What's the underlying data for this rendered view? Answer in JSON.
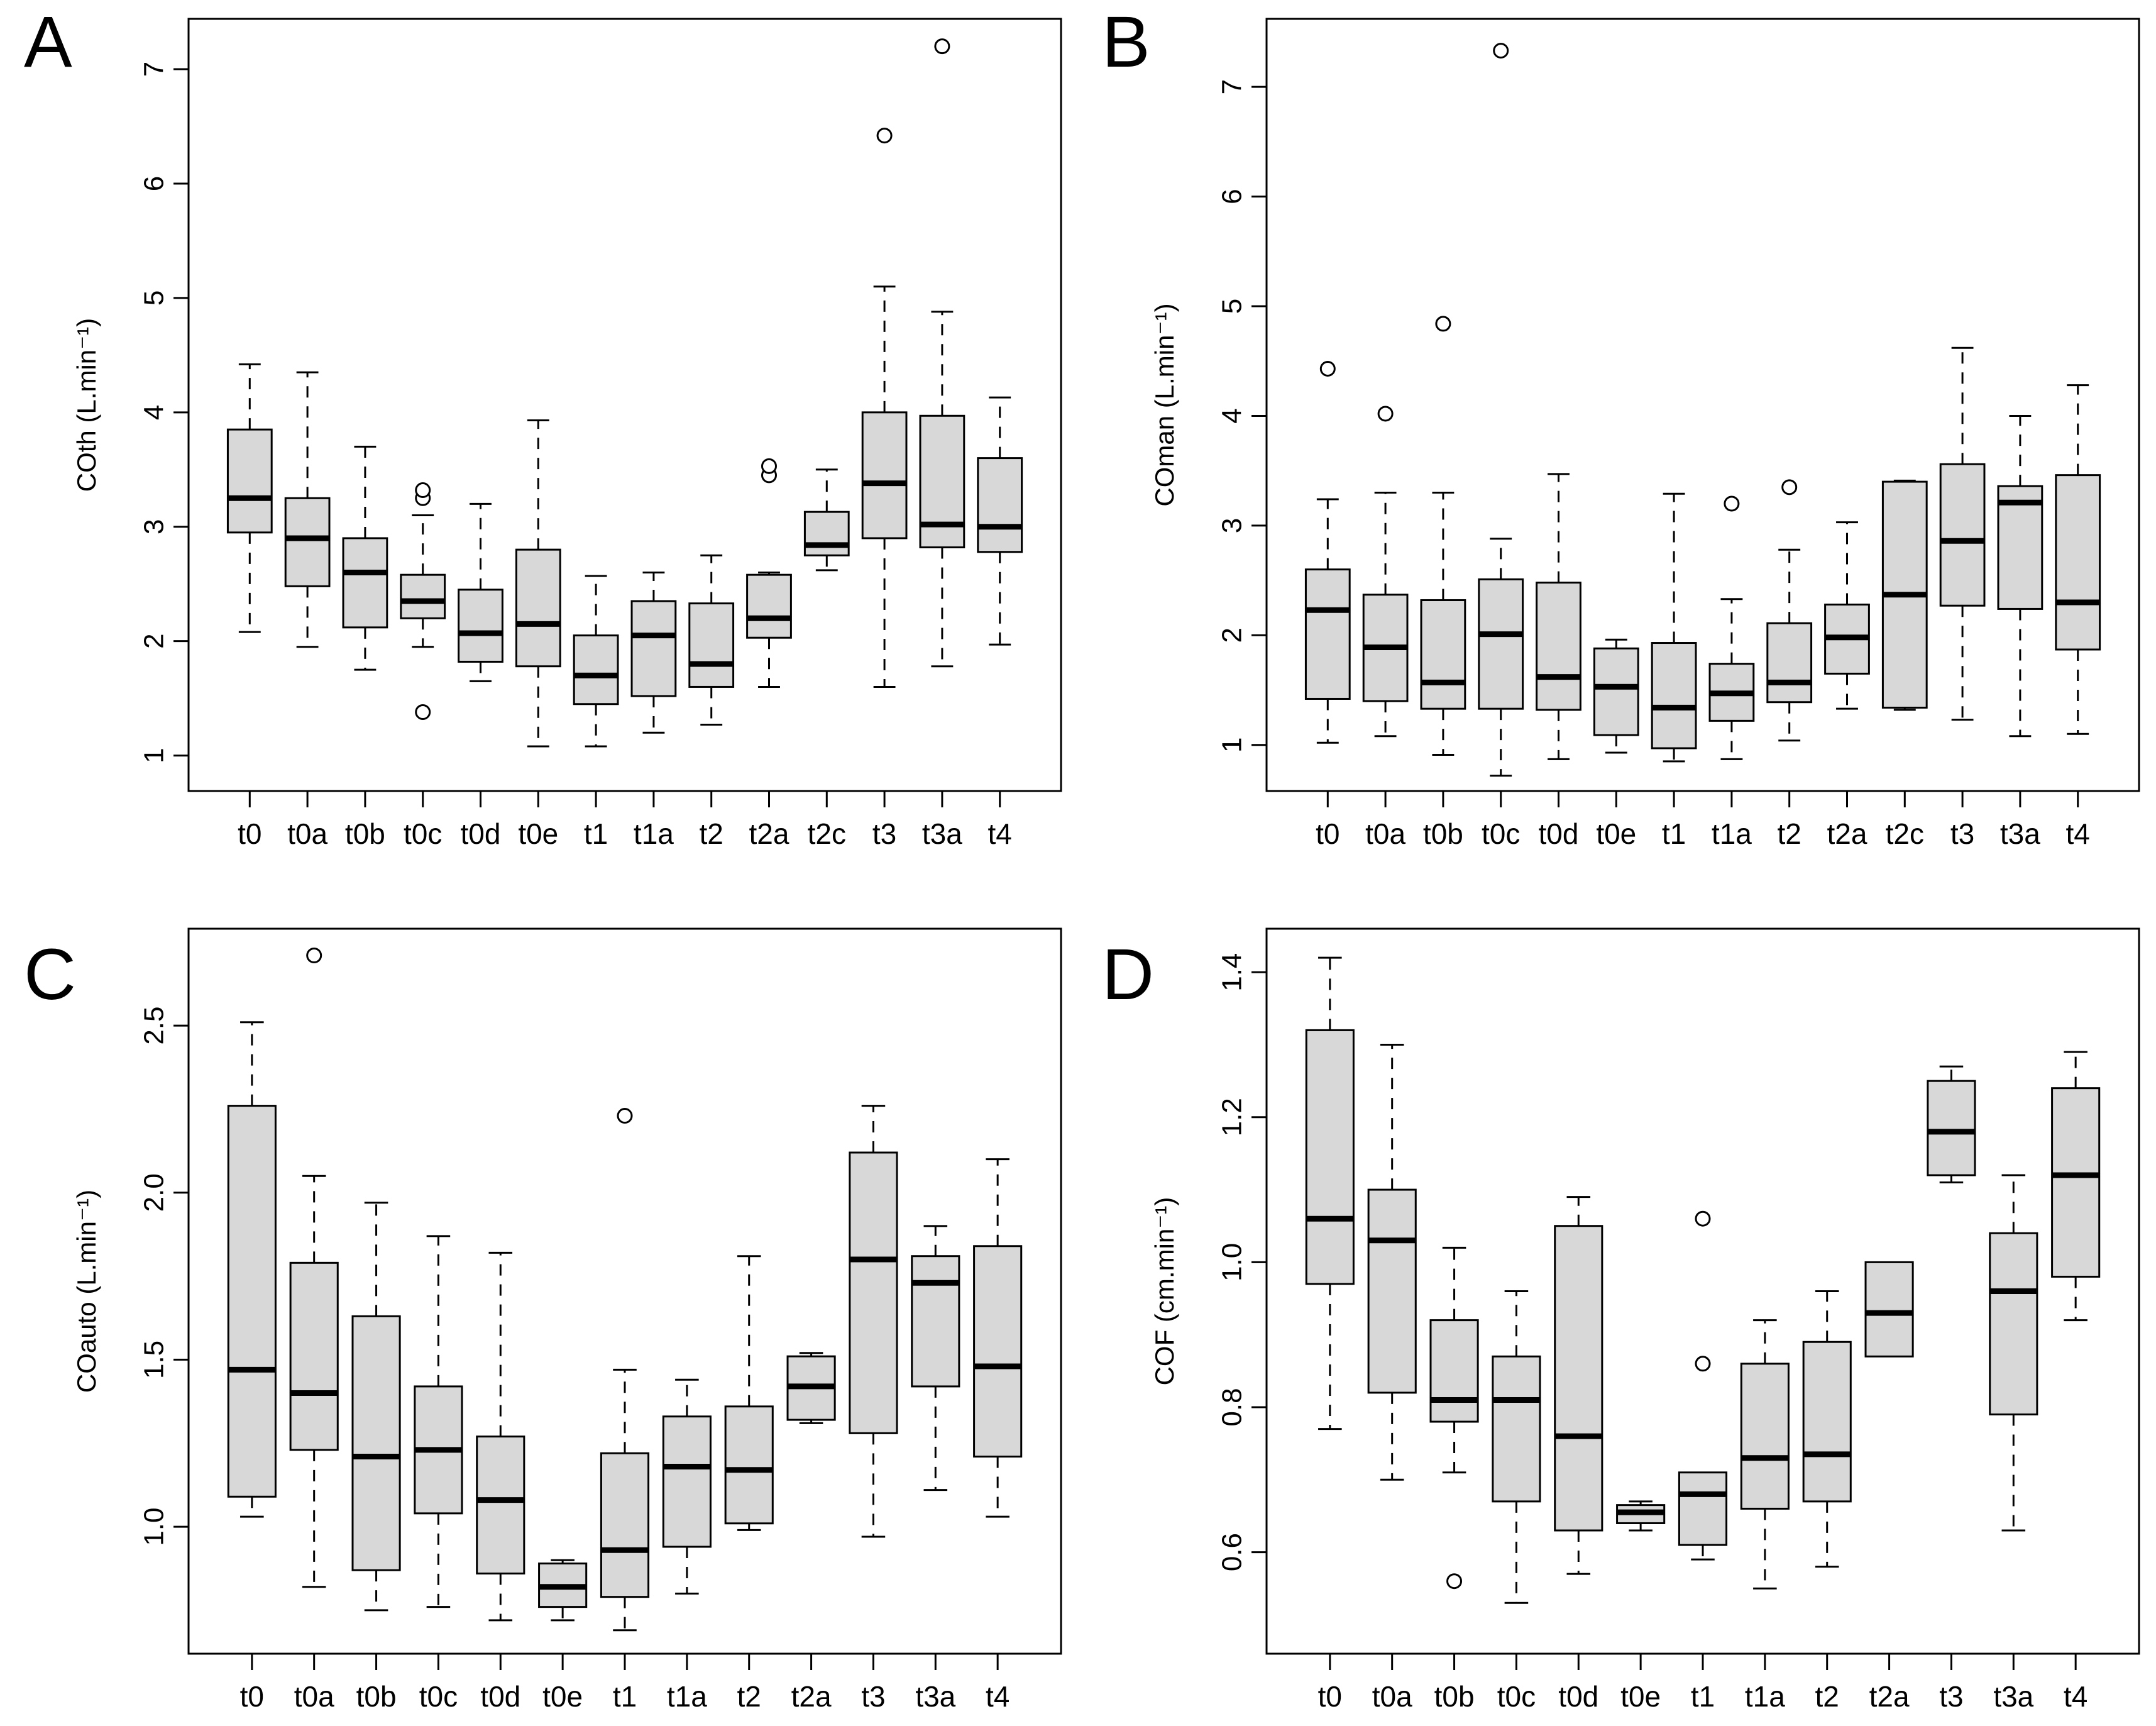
{
  "page": {
    "background": "#ffffff"
  },
  "style": {
    "box_fill": "#d8d8d8",
    "line_color": "#000000"
  },
  "chart_data": [
    {
      "type": "boxplot",
      "label": "A",
      "ylabel": "COth (L.min⁻¹)",
      "ylim": [
        0.69,
        7.44
      ],
      "yticks": [
        1,
        2,
        3,
        4,
        5,
        6,
        7
      ],
      "ytick_labels": [
        "1",
        "2",
        "3",
        "4",
        "5",
        "6",
        "7"
      ],
      "grid": false,
      "categories": [
        "t0",
        "t0a",
        "t0b",
        "t0c",
        "t0d",
        "t0e",
        "t1",
        "t1a",
        "t2",
        "t2a",
        "t2c",
        "t3",
        "t3a",
        "t4"
      ],
      "boxes": [
        {
          "lo": 2.08,
          "q1": 2.95,
          "med": 3.25,
          "q3": 3.85,
          "hi": 4.42,
          "out": []
        },
        {
          "lo": 1.95,
          "q1": 2.48,
          "med": 2.9,
          "q3": 3.25,
          "hi": 4.35,
          "out": []
        },
        {
          "lo": 1.75,
          "q1": 2.12,
          "med": 2.6,
          "q3": 2.9,
          "hi": 3.7,
          "out": []
        },
        {
          "lo": 1.95,
          "q1": 2.2,
          "med": 2.35,
          "q3": 2.58,
          "hi": 3.1,
          "out": [
            1.38,
            3.25,
            3.32
          ]
        },
        {
          "lo": 1.65,
          "q1": 1.82,
          "med": 2.07,
          "q3": 2.45,
          "hi": 3.2,
          "out": []
        },
        {
          "lo": 1.08,
          "q1": 1.78,
          "med": 2.15,
          "q3": 2.8,
          "hi": 3.93,
          "out": []
        },
        {
          "lo": 1.08,
          "q1": 1.45,
          "med": 1.7,
          "q3": 2.05,
          "hi": 2.57,
          "out": []
        },
        {
          "lo": 1.2,
          "q1": 1.52,
          "med": 2.05,
          "q3": 2.35,
          "hi": 2.6,
          "out": []
        },
        {
          "lo": 1.27,
          "q1": 1.6,
          "med": 1.8,
          "q3": 2.33,
          "hi": 2.75,
          "out": []
        },
        {
          "lo": 1.6,
          "q1": 2.03,
          "med": 2.2,
          "q3": 2.58,
          "hi": 2.6,
          "out": [
            3.45,
            3.53
          ]
        },
        {
          "lo": 2.62,
          "q1": 2.75,
          "med": 2.84,
          "q3": 3.13,
          "hi": 3.5,
          "out": []
        },
        {
          "lo": 1.6,
          "q1": 2.9,
          "med": 3.38,
          "q3": 4.0,
          "hi": 5.1,
          "out": [
            6.42
          ]
        },
        {
          "lo": 1.78,
          "q1": 2.82,
          "med": 3.02,
          "q3": 3.97,
          "hi": 4.88,
          "out": [
            7.2
          ]
        },
        {
          "lo": 1.97,
          "q1": 2.78,
          "med": 3.0,
          "q3": 3.6,
          "hi": 4.13,
          "out": []
        }
      ]
    },
    {
      "type": "boxplot",
      "label": "B",
      "ylabel": "COman (L.min⁻¹)",
      "ylim": [
        0.58,
        7.62
      ],
      "yticks": [
        1,
        2,
        3,
        4,
        5,
        6,
        7
      ],
      "ytick_labels": [
        "1",
        "2",
        "3",
        "4",
        "5",
        "6",
        "7"
      ],
      "grid": false,
      "categories": [
        "t0",
        "t0a",
        "t0b",
        "t0c",
        "t0d",
        "t0e",
        "t1",
        "t1a",
        "t2",
        "t2a",
        "t2c",
        "t3",
        "t3a",
        "t4"
      ],
      "boxes": [
        {
          "lo": 1.02,
          "q1": 1.42,
          "med": 2.23,
          "q3": 2.6,
          "hi": 3.24,
          "out": [
            4.43
          ]
        },
        {
          "lo": 1.08,
          "q1": 1.4,
          "med": 1.89,
          "q3": 2.37,
          "hi": 3.3,
          "out": [
            4.02
          ]
        },
        {
          "lo": 0.91,
          "q1": 1.33,
          "med": 1.57,
          "q3": 2.32,
          "hi": 3.3,
          "out": [
            4.84
          ]
        },
        {
          "lo": 0.72,
          "q1": 1.33,
          "med": 2.01,
          "q3": 2.51,
          "hi": 2.88,
          "out": [
            7.33
          ]
        },
        {
          "lo": 0.87,
          "q1": 1.32,
          "med": 1.62,
          "q3": 2.48,
          "hi": 3.47,
          "out": []
        },
        {
          "lo": 0.93,
          "q1": 1.09,
          "med": 1.53,
          "q3": 1.88,
          "hi": 1.96,
          "out": []
        },
        {
          "lo": 0.85,
          "q1": 0.97,
          "med": 1.34,
          "q3": 1.93,
          "hi": 3.29,
          "out": []
        },
        {
          "lo": 0.87,
          "q1": 1.22,
          "med": 1.47,
          "q3": 1.74,
          "hi": 2.33,
          "out": [
            3.2
          ]
        },
        {
          "lo": 1.04,
          "q1": 1.39,
          "med": 1.57,
          "q3": 2.11,
          "hi": 2.78,
          "out": [
            3.35
          ]
        },
        {
          "lo": 1.33,
          "q1": 1.65,
          "med": 1.98,
          "q3": 2.28,
          "hi": 3.03,
          "out": []
        },
        {
          "lo": 1.32,
          "q1": 1.34,
          "med": 2.37,
          "q3": 3.4,
          "hi": 3.41,
          "out": []
        },
        {
          "lo": 1.23,
          "q1": 2.27,
          "med": 2.86,
          "q3": 3.56,
          "hi": 4.62,
          "out": []
        },
        {
          "lo": 1.08,
          "q1": 2.24,
          "med": 3.21,
          "q3": 3.36,
          "hi": 4.0,
          "out": []
        },
        {
          "lo": 1.1,
          "q1": 1.87,
          "med": 2.3,
          "q3": 3.46,
          "hi": 4.28,
          "out": []
        }
      ]
    },
    {
      "type": "boxplot",
      "label": "C",
      "ylabel": "COauto (L.min⁻¹)",
      "ylim": [
        0.62,
        2.79
      ],
      "yticks": [
        1.0,
        1.5,
        2.0,
        2.5
      ],
      "ytick_labels": [
        "1.0",
        "1.5",
        "2.0",
        "2.5"
      ],
      "grid": false,
      "categories": [
        "t0",
        "t0a",
        "t0b",
        "t0c",
        "t0d",
        "t0e",
        "t1",
        "t1a",
        "t2",
        "t2a",
        "t3",
        "t3a",
        "t4"
      ],
      "boxes": [
        {
          "lo": 1.03,
          "q1": 1.09,
          "med": 1.47,
          "q3": 2.26,
          "hi": 2.51,
          "out": []
        },
        {
          "lo": 0.82,
          "q1": 1.23,
          "med": 1.4,
          "q3": 1.79,
          "hi": 2.05,
          "out": [
            2.71
          ]
        },
        {
          "lo": 0.75,
          "q1": 0.87,
          "med": 1.21,
          "q3": 1.63,
          "hi": 1.97,
          "out": []
        },
        {
          "lo": 0.76,
          "q1": 1.04,
          "med": 1.23,
          "q3": 1.42,
          "hi": 1.87,
          "out": []
        },
        {
          "lo": 0.72,
          "q1": 0.86,
          "med": 1.08,
          "q3": 1.27,
          "hi": 1.82,
          "out": []
        },
        {
          "lo": 0.72,
          "q1": 0.76,
          "med": 0.82,
          "q3": 0.89,
          "hi": 0.9,
          "out": []
        },
        {
          "lo": 0.69,
          "q1": 0.79,
          "med": 0.93,
          "q3": 1.22,
          "hi": 1.47,
          "out": [
            2.23
          ]
        },
        {
          "lo": 0.8,
          "q1": 0.94,
          "med": 1.18,
          "q3": 1.33,
          "hi": 1.44,
          "out": []
        },
        {
          "lo": 0.99,
          "q1": 1.01,
          "med": 1.17,
          "q3": 1.36,
          "hi": 1.81,
          "out": []
        },
        {
          "lo": 1.31,
          "q1": 1.32,
          "med": 1.42,
          "q3": 1.51,
          "hi": 1.52,
          "out": []
        },
        {
          "lo": 0.97,
          "q1": 1.28,
          "med": 1.8,
          "q3": 2.12,
          "hi": 2.26,
          "out": []
        },
        {
          "lo": 1.11,
          "q1": 1.42,
          "med": 1.73,
          "q3": 1.81,
          "hi": 1.9,
          "out": []
        },
        {
          "lo": 1.03,
          "q1": 1.21,
          "med": 1.48,
          "q3": 1.84,
          "hi": 2.1,
          "out": []
        }
      ]
    },
    {
      "type": "boxplot",
      "label": "D",
      "ylabel": "COF (cm.min⁻¹)",
      "ylim": [
        0.46,
        1.46
      ],
      "yticks": [
        0.6,
        0.8,
        1.0,
        1.2,
        1.4
      ],
      "ytick_labels": [
        "0.6",
        "0.8",
        "1.0",
        "1.2",
        "1.4"
      ],
      "grid": false,
      "categories": [
        "t0",
        "t0a",
        "t0b",
        "t0c",
        "t0d",
        "t0e",
        "t1",
        "t1a",
        "t2",
        "t2a",
        "t3",
        "t3a",
        "t4"
      ],
      "boxes": [
        {
          "lo": 0.77,
          "q1": 0.97,
          "med": 1.06,
          "q3": 1.32,
          "hi": 1.42,
          "out": []
        },
        {
          "lo": 0.7,
          "q1": 0.82,
          "med": 1.03,
          "q3": 1.1,
          "hi": 1.3,
          "out": []
        },
        {
          "lo": 0.71,
          "q1": 0.78,
          "med": 0.81,
          "q3": 0.92,
          "hi": 1.02,
          "out": [
            0.56
          ]
        },
        {
          "lo": 0.53,
          "q1": 0.67,
          "med": 0.81,
          "q3": 0.87,
          "hi": 0.96,
          "out": []
        },
        {
          "lo": 0.57,
          "q1": 0.63,
          "med": 0.76,
          "q3": 1.05,
          "hi": 1.09,
          "out": []
        },
        {
          "lo": 0.63,
          "q1": 0.64,
          "med": 0.655,
          "q3": 0.665,
          "hi": 0.67,
          "out": []
        },
        {
          "lo": 0.59,
          "q1": 0.61,
          "med": 0.68,
          "q3": 0.71,
          "hi": 0.71,
          "out": [
            0.86,
            1.06
          ]
        },
        {
          "lo": 0.55,
          "q1": 0.66,
          "med": 0.73,
          "q3": 0.86,
          "hi": 0.92,
          "out": []
        },
        {
          "lo": 0.58,
          "q1": 0.67,
          "med": 0.735,
          "q3": 0.89,
          "hi": 0.96,
          "out": []
        },
        {
          "lo": 0.87,
          "q1": 0.87,
          "med": 0.93,
          "q3": 1.0,
          "hi": 1.0,
          "out": []
        },
        {
          "lo": 1.11,
          "q1": 1.12,
          "med": 1.18,
          "q3": 1.25,
          "hi": 1.27,
          "out": []
        },
        {
          "lo": 0.63,
          "q1": 0.79,
          "med": 0.96,
          "q3": 1.04,
          "hi": 1.12,
          "out": []
        },
        {
          "lo": 0.92,
          "q1": 0.98,
          "med": 1.12,
          "q3": 1.24,
          "hi": 1.29,
          "out": []
        }
      ]
    }
  ]
}
